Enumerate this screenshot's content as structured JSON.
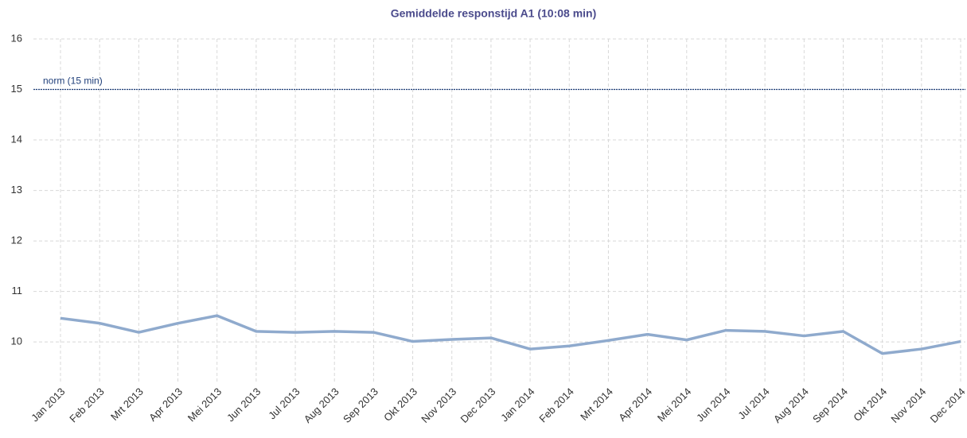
{
  "chart_data": {
    "type": "line",
    "title": "Gemiddelde responstijd A1 (10:08 min)",
    "categories": [
      "Jan 2013",
      "Feb 2013",
      "Mrt 2013",
      "Apr 2013",
      "Mei 2013",
      "Jun 2013",
      "Jul 2013",
      "Aug 2013",
      "Sep 2013",
      "Okt 2013",
      "Nov 2013",
      "Dec 2013",
      "Jan 2014",
      "Feb 2014",
      "Mrt 2014",
      "Apr 2014",
      "Mei 2014",
      "Jun 2014",
      "Jul 2014",
      "Aug 2014",
      "Sep 2014",
      "Okt 2014",
      "Nov 2014",
      "Dec 2014"
    ],
    "values": [
      10.47,
      10.37,
      10.19,
      10.37,
      10.52,
      10.21,
      10.19,
      10.21,
      10.19,
      10.01,
      10.05,
      10.08,
      9.86,
      9.92,
      10.03,
      10.15,
      10.04,
      10.23,
      10.21,
      10.12,
      10.21,
      9.77,
      9.86,
      10.01
    ],
    "color": "#8faacd",
    "ylim": [
      9.2,
      16
    ],
    "yticks": [
      10,
      11,
      12,
      13,
      14,
      15,
      16
    ],
    "grid": true,
    "reference_line": {
      "value": 15,
      "label": "norm (15 min)",
      "color": "#1f3f7a"
    }
  }
}
